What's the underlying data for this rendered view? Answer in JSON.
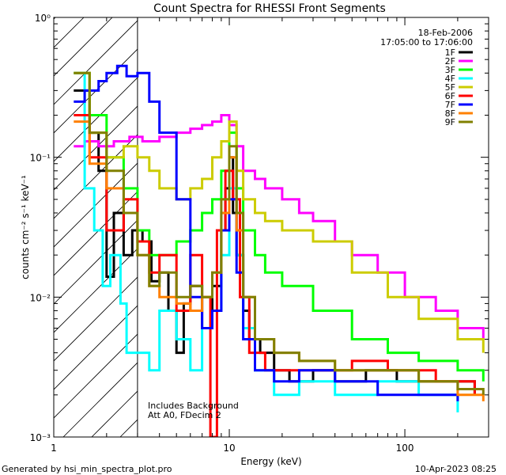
{
  "chart_data": {
    "type": "line",
    "title": "Count Spectra for RHESSI Front Segments",
    "xlabel": "Energy (keV)",
    "ylabel": "counts cm⁻² s⁻¹ keV⁻¹",
    "xscale": "log",
    "yscale": "log",
    "xlim": [
      1,
      300
    ],
    "ylim": [
      0.001,
      1
    ],
    "x_ticks": [
      {
        "value": 1,
        "label": "1"
      },
      {
        "value": 10,
        "label": "10"
      },
      {
        "value": 100,
        "label": "100"
      }
    ],
    "y_ticks": [
      {
        "value": 1,
        "label": "10⁰"
      },
      {
        "value": 0.1,
        "label": "10⁻¹"
      },
      {
        "value": 0.01,
        "label": "10⁻²"
      },
      {
        "value": 0.001,
        "label": "10⁻³"
      }
    ],
    "date": "18-Feb-2006",
    "time_range": "17:05:00 to 17:06:00",
    "shaded_region": {
      "x_from": 1,
      "x_to": 3,
      "style": "diagonal hatch"
    },
    "annotation": [
      "Includes Background",
      "Att A0, FDecim 2"
    ],
    "legend_position": "top-right",
    "series": [
      {
        "name": "1F",
        "color": "#000000",
        "points": [
          [
            1.3,
            0.3
          ],
          [
            1.4,
            0.3
          ],
          [
            1.6,
            0.15
          ],
          [
            1.8,
            0.08
          ],
          [
            2.0,
            0.014
          ],
          [
            2.2,
            0.04
          ],
          [
            2.5,
            0.02
          ],
          [
            2.8,
            0.03
          ],
          [
            3.2,
            0.025
          ],
          [
            3.6,
            0.013
          ],
          [
            4.0,
            0.015
          ],
          [
            4.5,
            0.008
          ],
          [
            5.0,
            0.004
          ],
          [
            5.5,
            0.009
          ],
          [
            6.0,
            0.012
          ],
          [
            7.0,
            0.006
          ],
          [
            8.0,
            0.012
          ],
          [
            9.0,
            0.03
          ],
          [
            9.5,
            0.06
          ],
          [
            10.0,
            0.1
          ],
          [
            10.5,
            0.04
          ],
          [
            11.0,
            0.02
          ],
          [
            12,
            0.008
          ],
          [
            13,
            0.005
          ],
          [
            15,
            0.004
          ],
          [
            18,
            0.003
          ],
          [
            22,
            0.0025
          ],
          [
            30,
            0.003
          ],
          [
            40,
            0.0025
          ],
          [
            60,
            0.003
          ],
          [
            90,
            0.0025
          ],
          [
            150,
            0.0025
          ],
          [
            250,
            0.002
          ]
        ]
      },
      {
        "name": "2F",
        "color": "#ff00ff",
        "points": [
          [
            1.3,
            0.12
          ],
          [
            1.5,
            0.13
          ],
          [
            1.8,
            0.12
          ],
          [
            2.2,
            0.13
          ],
          [
            2.7,
            0.14
          ],
          [
            3.2,
            0.13
          ],
          [
            4.0,
            0.14
          ],
          [
            5.0,
            0.15
          ],
          [
            6.0,
            0.16
          ],
          [
            7.0,
            0.17
          ],
          [
            8.0,
            0.18
          ],
          [
            9.0,
            0.2
          ],
          [
            10.0,
            0.17
          ],
          [
            11.0,
            0.12
          ],
          [
            12,
            0.08
          ],
          [
            14,
            0.07
          ],
          [
            16,
            0.06
          ],
          [
            20,
            0.05
          ],
          [
            25,
            0.04
          ],
          [
            30,
            0.035
          ],
          [
            40,
            0.025
          ],
          [
            50,
            0.02
          ],
          [
            70,
            0.015
          ],
          [
            100,
            0.01
          ],
          [
            150,
            0.008
          ],
          [
            200,
            0.006
          ],
          [
            280,
            0.005
          ]
        ]
      },
      {
        "name": "3F",
        "color": "#00ff00",
        "points": [
          [
            1.3,
            0.4
          ],
          [
            1.6,
            0.2
          ],
          [
            2.0,
            0.1
          ],
          [
            2.5,
            0.06
          ],
          [
            3.0,
            0.03
          ],
          [
            3.5,
            0.02
          ],
          [
            4.0,
            0.02
          ],
          [
            5.0,
            0.025
          ],
          [
            6.0,
            0.03
          ],
          [
            7.0,
            0.04
          ],
          [
            8.0,
            0.05
          ],
          [
            9.0,
            0.08
          ],
          [
            10.0,
            0.15
          ],
          [
            11.0,
            0.06
          ],
          [
            12,
            0.03
          ],
          [
            14,
            0.02
          ],
          [
            16,
            0.015
          ],
          [
            20,
            0.012
          ],
          [
            30,
            0.008
          ],
          [
            50,
            0.005
          ],
          [
            80,
            0.004
          ],
          [
            120,
            0.0035
          ],
          [
            200,
            0.003
          ],
          [
            280,
            0.0025
          ]
        ]
      },
      {
        "name": "4F",
        "color": "#00ffff",
        "points": [
          [
            1.3,
            0.4
          ],
          [
            1.5,
            0.06
          ],
          [
            1.7,
            0.03
          ],
          [
            1.9,
            0.012
          ],
          [
            2.1,
            0.02
          ],
          [
            2.4,
            0.009
          ],
          [
            2.6,
            0.004
          ],
          [
            3.0,
            0.004
          ],
          [
            3.5,
            0.003
          ],
          [
            4.0,
            0.008
          ],
          [
            5.0,
            0.005
          ],
          [
            6.0,
            0.003
          ],
          [
            7.0,
            0.006
          ],
          [
            8.0,
            0.008
          ],
          [
            9.0,
            0.02
          ],
          [
            10.0,
            0.06
          ],
          [
            11.0,
            0.02
          ],
          [
            12,
            0.006
          ],
          [
            14,
            0.003
          ],
          [
            18,
            0.002
          ],
          [
            25,
            0.0025
          ],
          [
            40,
            0.002
          ],
          [
            70,
            0.0025
          ],
          [
            120,
            0.002
          ],
          [
            200,
            0.0015
          ]
        ]
      },
      {
        "name": "5F",
        "color": "#cccc00",
        "points": [
          [
            1.3,
            0.4
          ],
          [
            1.6,
            0.15
          ],
          [
            2.0,
            0.1
          ],
          [
            2.5,
            0.12
          ],
          [
            3.0,
            0.1
          ],
          [
            3.5,
            0.08
          ],
          [
            4.0,
            0.06
          ],
          [
            5.0,
            0.05
          ],
          [
            6.0,
            0.06
          ],
          [
            7.0,
            0.07
          ],
          [
            8.0,
            0.1
          ],
          [
            9.0,
            0.13
          ],
          [
            10.0,
            0.18
          ],
          [
            11.0,
            0.08
          ],
          [
            12,
            0.05
          ],
          [
            14,
            0.04
          ],
          [
            16,
            0.035
          ],
          [
            20,
            0.03
          ],
          [
            30,
            0.025
          ],
          [
            50,
            0.015
          ],
          [
            80,
            0.01
          ],
          [
            120,
            0.007
          ],
          [
            200,
            0.005
          ],
          [
            280,
            0.004
          ]
        ]
      },
      {
        "name": "6F",
        "color": "#ff0000",
        "points": [
          [
            1.3,
            0.2
          ],
          [
            1.6,
            0.1
          ],
          [
            2.0,
            0.03
          ],
          [
            2.5,
            0.05
          ],
          [
            3.0,
            0.025
          ],
          [
            3.5,
            0.015
          ],
          [
            4.0,
            0.02
          ],
          [
            5.0,
            0.008
          ],
          [
            6.0,
            0.02
          ],
          [
            7.0,
            0.01
          ],
          [
            7.8,
            0.001
          ],
          [
            8.5,
            0.03
          ],
          [
            9.5,
            0.08
          ],
          [
            10.5,
            0.05
          ],
          [
            11.5,
            0.01
          ],
          [
            13,
            0.004
          ],
          [
            16,
            0.003
          ],
          [
            20,
            0.003
          ],
          [
            30,
            0.003
          ],
          [
            50,
            0.0035
          ],
          [
            80,
            0.003
          ],
          [
            150,
            0.0025
          ],
          [
            250,
            0.002
          ]
        ]
      },
      {
        "name": "7F",
        "color": "#0000ff",
        "points": [
          [
            1.3,
            0.25
          ],
          [
            1.5,
            0.3
          ],
          [
            1.8,
            0.35
          ],
          [
            2.0,
            0.4
          ],
          [
            2.3,
            0.45
          ],
          [
            2.6,
            0.38
          ],
          [
            3.0,
            0.4
          ],
          [
            3.5,
            0.25
          ],
          [
            4.0,
            0.15
          ],
          [
            5.0,
            0.05
          ],
          [
            6.0,
            0.01
          ],
          [
            7.0,
            0.006
          ],
          [
            8.0,
            0.008
          ],
          [
            9.0,
            0.03
          ],
          [
            10.0,
            0.05
          ],
          [
            11.0,
            0.015
          ],
          [
            12,
            0.005
          ],
          [
            14,
            0.003
          ],
          [
            18,
            0.0025
          ],
          [
            25,
            0.003
          ],
          [
            40,
            0.0025
          ],
          [
            70,
            0.002
          ],
          [
            120,
            0.002
          ],
          [
            200,
            0.0018
          ]
        ]
      },
      {
        "name": "8F",
        "color": "#ff8000",
        "points": [
          [
            1.3,
            0.18
          ],
          [
            1.6,
            0.09
          ],
          [
            2.0,
            0.06
          ],
          [
            2.5,
            0.04
          ],
          [
            3.0,
            0.02
          ],
          [
            3.5,
            0.012
          ],
          [
            4.0,
            0.01
          ],
          [
            5.0,
            0.009
          ],
          [
            6.0,
            0.008
          ],
          [
            7.0,
            0.01
          ],
          [
            8.0,
            0.015
          ],
          [
            9.0,
            0.04
          ],
          [
            10.0,
            0.1
          ],
          [
            11.0,
            0.03
          ],
          [
            12,
            0.01
          ],
          [
            14,
            0.005
          ],
          [
            18,
            0.004
          ],
          [
            25,
            0.0035
          ],
          [
            40,
            0.003
          ],
          [
            70,
            0.003
          ],
          [
            120,
            0.0025
          ],
          [
            200,
            0.002
          ],
          [
            280,
            0.0018
          ]
        ]
      },
      {
        "name": "9F",
        "color": "#808000",
        "points": [
          [
            1.3,
            0.4
          ],
          [
            1.6,
            0.15
          ],
          [
            2.0,
            0.08
          ],
          [
            2.5,
            0.04
          ],
          [
            3.0,
            0.02
          ],
          [
            3.5,
            0.012
          ],
          [
            4.0,
            0.015
          ],
          [
            5.0,
            0.01
          ],
          [
            6.0,
            0.012
          ],
          [
            7.0,
            0.01
          ],
          [
            8.0,
            0.015
          ],
          [
            9.0,
            0.05
          ],
          [
            10.0,
            0.12
          ],
          [
            11.0,
            0.04
          ],
          [
            12,
            0.01
          ],
          [
            14,
            0.005
          ],
          [
            18,
            0.004
          ],
          [
            25,
            0.0035
          ],
          [
            40,
            0.003
          ],
          [
            70,
            0.003
          ],
          [
            120,
            0.0025
          ],
          [
            200,
            0.0022
          ],
          [
            280,
            0.002
          ]
        ]
      }
    ]
  },
  "footer": {
    "generated_by": "Generated by hsi_min_spectra_plot.pro",
    "date_stamp": "10-Apr-2023 08:25"
  }
}
